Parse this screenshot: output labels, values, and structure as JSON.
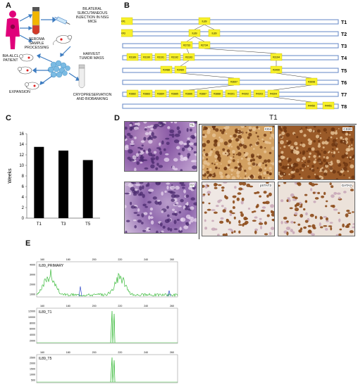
{
  "panels": {
    "a": "A",
    "b": "B",
    "c": "C",
    "d": "D",
    "e": "E"
  },
  "panel_a": {
    "patient": "BIA-ALCL PATIENT",
    "seroma": "SEROMA SAMPLE PROCESSING",
    "injection": "BILATERAL SUBCUTANEOUS INJECTION IN NSG MICE",
    "harvest": "HARVEST TUMOR MASS",
    "expansion": "EXPANSION",
    "cryo": "CRYOPRESERVATION AND BIOBANKING",
    "colors": {
      "patient": "#e0007a",
      "tube_top": "#f2b600",
      "tube_bottom": "#d23a28",
      "tumor": "#7bbbe3",
      "arrow": "#3d7cc1"
    }
  },
  "panel_b": {
    "rows": [
      "T1",
      "T2",
      "T3",
      "T4",
      "T5",
      "T6",
      "T7",
      "T8"
    ],
    "node_groups": [
      [
        "IL89",
        "MSK#1"
      ],
      [
        "IL89",
        "MSK#2"
      ],
      [
        "IL89",
        "MSK#3"
      ],
      [
        "#2733",
        "#2734"
      ],
      [
        "#3189",
        "#3190",
        "#3191",
        "#3192",
        "#3193",
        "#3194"
      ],
      [
        "#3488",
        "#3489",
        "#3490"
      ],
      [
        "#3697",
        "#3698"
      ],
      [
        "#3882",
        "#3883",
        "#3884",
        "#3885",
        "#3886",
        "#3887",
        "#3888",
        "#4301",
        "#4302",
        "#4303",
        "#4304"
      ],
      [
        "#4450",
        "#4451"
      ]
    ],
    "colors": {
      "bar_border": "#6f8fc9",
      "node_fill": "#f7f02a"
    }
  },
  "panel_c": {
    "chart_data": {
      "type": "bar",
      "categories": [
        "T1",
        "T3",
        "T5"
      ],
      "values": [
        13.5,
        12.8,
        11.0
      ],
      "ylabel": "Weeks",
      "ylim": [
        0,
        16
      ],
      "yticks": [
        "0",
        "2",
        "4",
        "6",
        "8",
        "10",
        "12",
        "14",
        "16"
      ],
      "grid": false
    }
  },
  "panel_d": {
    "header": "T1",
    "tiles": [
      "T1",
      "T7",
      "CD4",
      "CD30",
      "pSTAT3",
      "GATA3"
    ]
  },
  "panel_e": {
    "tracks": [
      {
        "label": "IL89_PRIMARY",
        "yticks": [
          "4000",
          "3000",
          "2000",
          "1000"
        ]
      },
      {
        "label": "IL89_T1",
        "yticks": [
          "12000",
          "10000",
          "8000",
          "6000",
          "4000",
          "2000"
        ]
      },
      {
        "label": "IL89_T5",
        "yticks": [
          "2500",
          "2000",
          "1500",
          "1000",
          "500"
        ]
      }
    ],
    "xticks": [
      "160",
      "180",
      "200",
      "220",
      "240",
      "260"
    ]
  }
}
